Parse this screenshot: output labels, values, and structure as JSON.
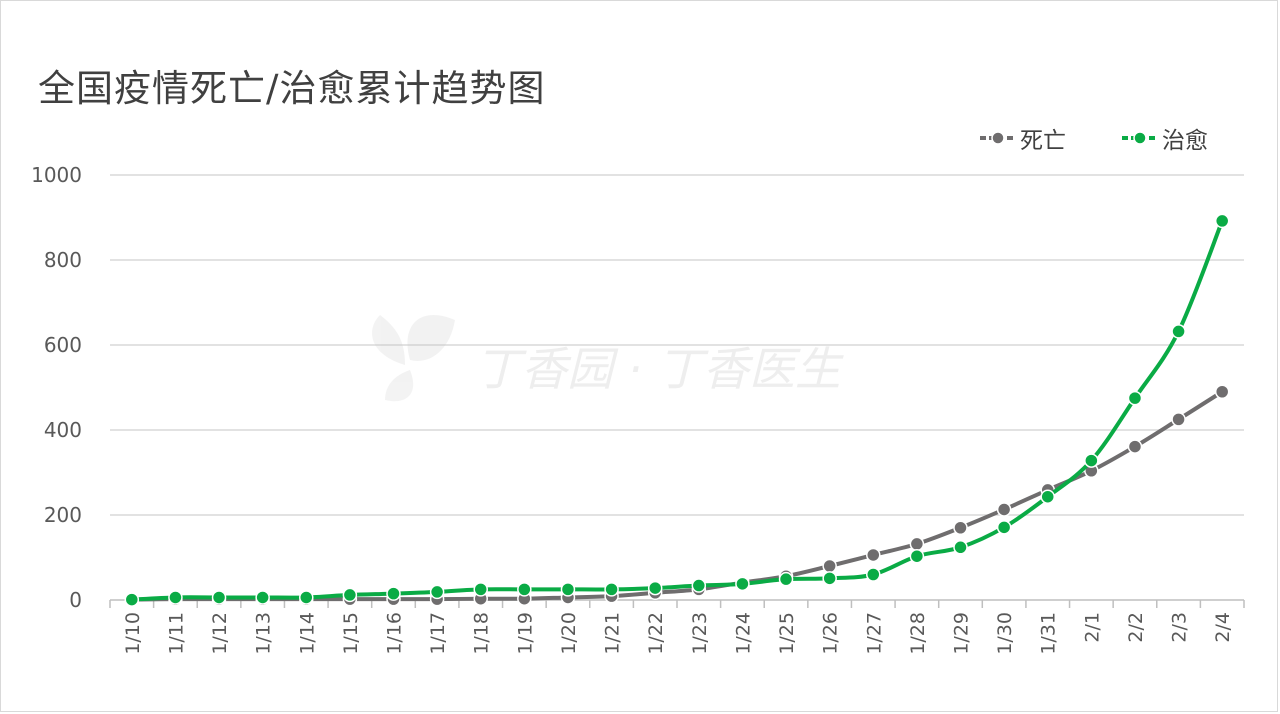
{
  "chart_data": {
    "type": "line",
    "title": "全国疫情死亡/治愈累计趋势图",
    "categories": [
      "1/10",
      "1/11",
      "1/12",
      "1/13",
      "1/14",
      "1/15",
      "1/16",
      "1/17",
      "1/18",
      "1/19",
      "1/20",
      "1/21",
      "1/22",
      "1/23",
      "1/24",
      "1/25",
      "1/26",
      "1/27",
      "1/28",
      "1/29",
      "1/30",
      "1/31",
      "2/1",
      "2/2",
      "2/3",
      "2/4"
    ],
    "series": [
      {
        "name": "死亡",
        "color": "#6f6d6e",
        "values": [
          1,
          2,
          2,
          2,
          2,
          2,
          2,
          2,
          3,
          3,
          6,
          9,
          17,
          25,
          41,
          56,
          80,
          106,
          132,
          170,
          213,
          259,
          304,
          361,
          425,
          490
        ]
      },
      {
        "name": "治愈",
        "color": "#0aab45",
        "values": [
          1,
          6,
          6,
          6,
          6,
          12,
          15,
          19,
          25,
          25,
          25,
          25,
          28,
          34,
          38,
          49,
          51,
          60,
          103,
          124,
          171,
          243,
          328,
          475,
          632,
          892
        ]
      }
    ],
    "ylim": [
      0,
      1000
    ],
    "yticks": [
      0,
      200,
      400,
      600,
      800,
      1000
    ],
    "grid": true,
    "legend_position": "top-right"
  },
  "watermark": "丁香园 · 丁香医生"
}
